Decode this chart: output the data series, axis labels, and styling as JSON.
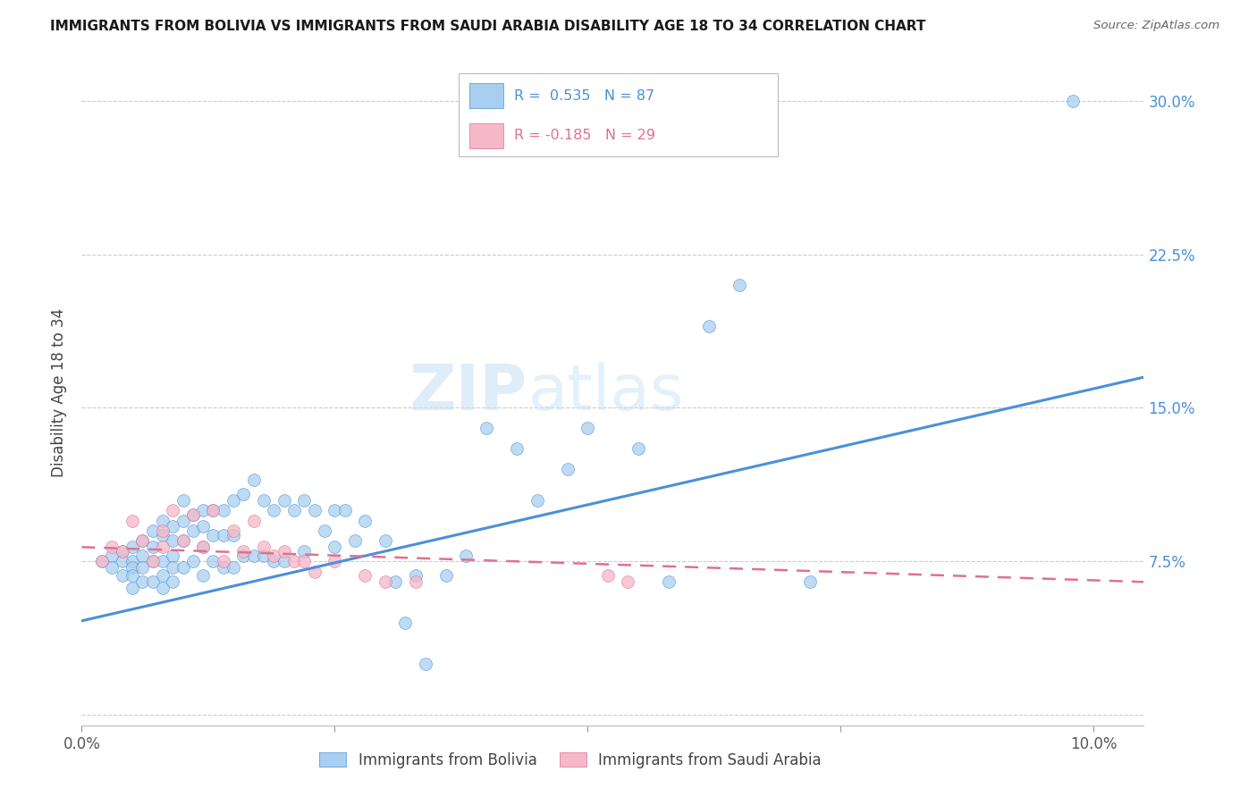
{
  "title": "IMMIGRANTS FROM BOLIVIA VS IMMIGRANTS FROM SAUDI ARABIA DISABILITY AGE 18 TO 34 CORRELATION CHART",
  "source": "Source: ZipAtlas.com",
  "ylabel": "Disability Age 18 to 34",
  "xlim": [
    0.0,
    0.105
  ],
  "ylim": [
    -0.005,
    0.32
  ],
  "yticks": [
    0.0,
    0.075,
    0.15,
    0.225,
    0.3
  ],
  "ytick_labels": [
    "",
    "7.5%",
    "15.0%",
    "22.5%",
    "30.0%"
  ],
  "xticks": [
    0.0,
    0.025,
    0.05,
    0.075,
    0.1
  ],
  "xtick_labels": [
    "0.0%",
    "",
    "",
    "",
    "10.0%"
  ],
  "color_bolivia": "#A8CFF0",
  "color_saudi": "#F5B8C8",
  "color_line_bolivia": "#4A90D9",
  "color_line_saudi": "#E07090",
  "watermark_zip": "ZIP",
  "watermark_atlas": "atlas",
  "bolivia_scatter_x": [
    0.002,
    0.003,
    0.003,
    0.004,
    0.004,
    0.004,
    0.005,
    0.005,
    0.005,
    0.005,
    0.005,
    0.006,
    0.006,
    0.006,
    0.006,
    0.007,
    0.007,
    0.007,
    0.007,
    0.008,
    0.008,
    0.008,
    0.008,
    0.008,
    0.009,
    0.009,
    0.009,
    0.009,
    0.009,
    0.01,
    0.01,
    0.01,
    0.01,
    0.011,
    0.011,
    0.011,
    0.012,
    0.012,
    0.012,
    0.012,
    0.013,
    0.013,
    0.013,
    0.014,
    0.014,
    0.014,
    0.015,
    0.015,
    0.015,
    0.016,
    0.016,
    0.017,
    0.017,
    0.018,
    0.018,
    0.019,
    0.019,
    0.02,
    0.02,
    0.021,
    0.022,
    0.022,
    0.023,
    0.024,
    0.025,
    0.025,
    0.026,
    0.027,
    0.028,
    0.03,
    0.031,
    0.032,
    0.033,
    0.034,
    0.036,
    0.038,
    0.04,
    0.043,
    0.045,
    0.048,
    0.05,
    0.055,
    0.058,
    0.062,
    0.065,
    0.072,
    0.098
  ],
  "bolivia_scatter_y": [
    0.075,
    0.078,
    0.072,
    0.08,
    0.075,
    0.068,
    0.082,
    0.075,
    0.072,
    0.068,
    0.062,
    0.085,
    0.078,
    0.072,
    0.065,
    0.09,
    0.082,
    0.075,
    0.065,
    0.095,
    0.088,
    0.075,
    0.068,
    0.062,
    0.092,
    0.085,
    0.078,
    0.072,
    0.065,
    0.105,
    0.095,
    0.085,
    0.072,
    0.098,
    0.09,
    0.075,
    0.1,
    0.092,
    0.082,
    0.068,
    0.1,
    0.088,
    0.075,
    0.1,
    0.088,
    0.072,
    0.105,
    0.088,
    0.072,
    0.108,
    0.078,
    0.115,
    0.078,
    0.105,
    0.078,
    0.1,
    0.075,
    0.105,
    0.075,
    0.1,
    0.105,
    0.08,
    0.1,
    0.09,
    0.1,
    0.082,
    0.1,
    0.085,
    0.095,
    0.085,
    0.065,
    0.045,
    0.068,
    0.025,
    0.068,
    0.078,
    0.14,
    0.13,
    0.105,
    0.12,
    0.14,
    0.13,
    0.065,
    0.19,
    0.21,
    0.065,
    0.3
  ],
  "saudi_scatter_x": [
    0.002,
    0.003,
    0.004,
    0.005,
    0.006,
    0.007,
    0.008,
    0.008,
    0.009,
    0.01,
    0.011,
    0.012,
    0.013,
    0.014,
    0.015,
    0.016,
    0.017,
    0.018,
    0.019,
    0.02,
    0.021,
    0.022,
    0.023,
    0.025,
    0.028,
    0.03,
    0.033,
    0.052,
    0.054
  ],
  "saudi_scatter_y": [
    0.075,
    0.082,
    0.08,
    0.095,
    0.085,
    0.075,
    0.09,
    0.082,
    0.1,
    0.085,
    0.098,
    0.082,
    0.1,
    0.075,
    0.09,
    0.08,
    0.095,
    0.082,
    0.078,
    0.08,
    0.075,
    0.075,
    0.07,
    0.075,
    0.068,
    0.065,
    0.065,
    0.068,
    0.065
  ],
  "bolivia_line_x": [
    0.0,
    0.105
  ],
  "bolivia_line_y": [
    0.046,
    0.165
  ],
  "saudi_line_x": [
    0.0,
    0.105
  ],
  "saudi_line_y": [
    0.082,
    0.065
  ]
}
